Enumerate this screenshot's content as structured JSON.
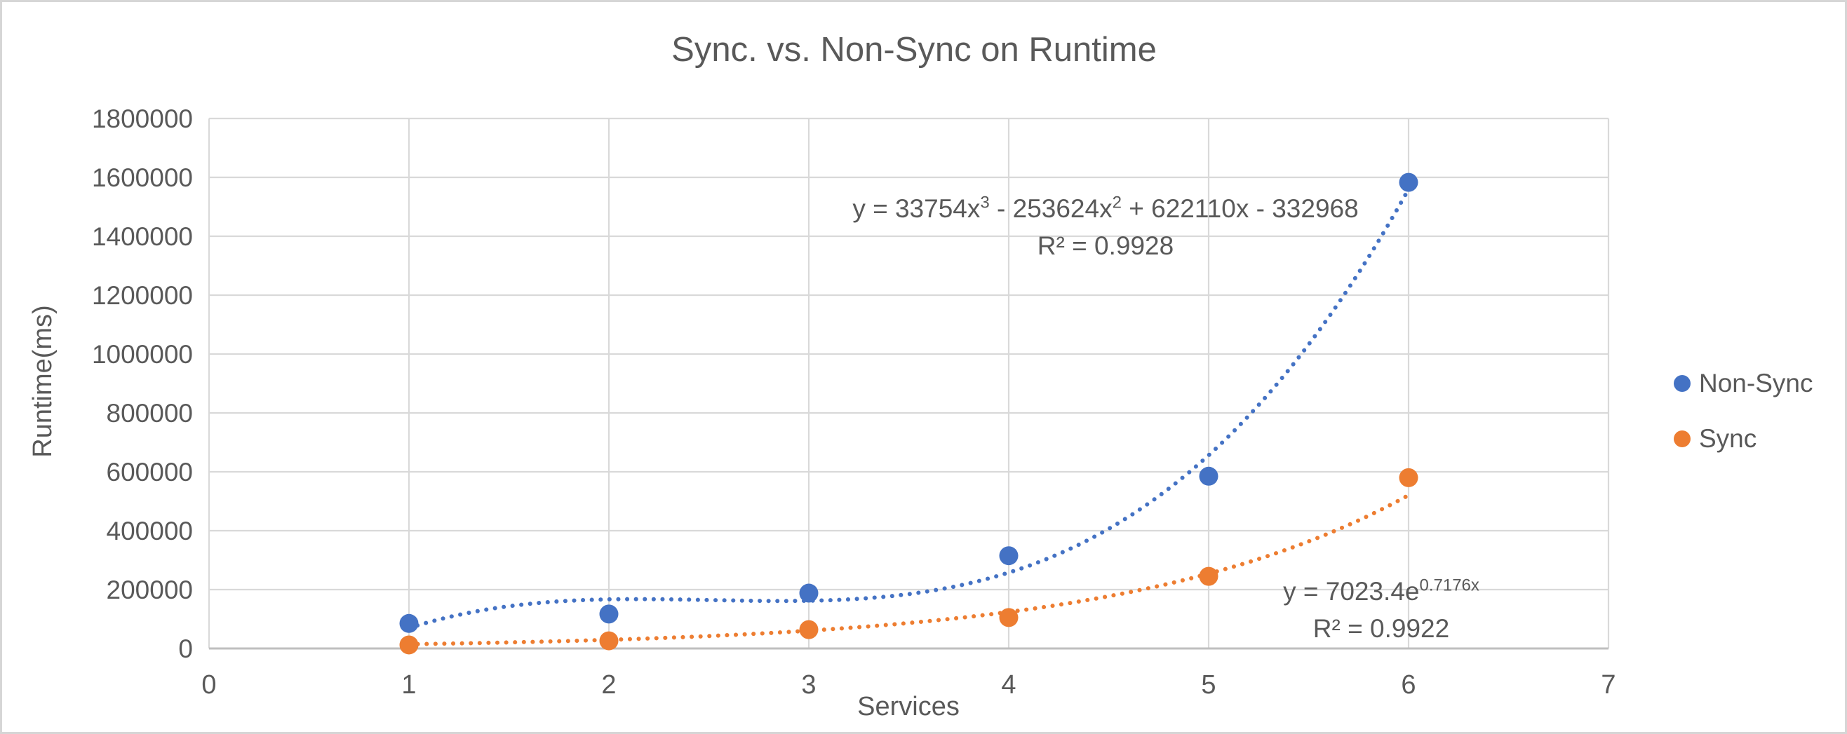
{
  "page": {
    "background": "#FFFFFF",
    "border_color": "#D6D6D6"
  },
  "chart_data": {
    "type": "scatter",
    "title": "Sync. vs. Non-Sync on Runtime",
    "xlabel": "Services",
    "ylabel": "Runtime(ms)",
    "xlim": [
      0,
      7
    ],
    "ylim": [
      0,
      1800000
    ],
    "x_ticks": [
      0,
      1,
      2,
      3,
      4,
      5,
      6,
      7
    ],
    "y_ticks": [
      0,
      200000,
      400000,
      600000,
      800000,
      1000000,
      1200000,
      1400000,
      1600000,
      1800000
    ],
    "y_tick_labels": [
      "0",
      "200000",
      "400000",
      "600000",
      "800000",
      "1000000",
      "1200000",
      "1400000",
      "1600000",
      "1800000"
    ],
    "grid": true,
    "legend_position": "right-middle",
    "text_color": "#595959",
    "gridline_color": "#D9D9D9",
    "axis_line_color": "#BFBFBF",
    "series": [
      {
        "name": "Non-Sync",
        "color": "#4472C4",
        "x": [
          1,
          2,
          3,
          4,
          5,
          6
        ],
        "y": [
          85000,
          117000,
          188000,
          315000,
          585000,
          1583000
        ],
        "trendline": {
          "type": "polynomial",
          "order": 3,
          "coefficients": [
            33754,
            -253624,
            622110,
            -332968
          ],
          "style": "dotted",
          "x_range": [
            1,
            6
          ],
          "equation_parts": {
            "p1": "y = 33754x",
            "sup1": "3",
            "p2": " - 253624x",
            "sup2": "2",
            "p3": " + 622110x - 332968"
          },
          "r_squared": "R² = 0.9928"
        }
      },
      {
        "name": "Sync",
        "color": "#ED7D31",
        "x": [
          1,
          2,
          3,
          4,
          5,
          6
        ],
        "y": [
          12000,
          26000,
          64000,
          105000,
          245000,
          580000
        ],
        "trendline": {
          "type": "exponential",
          "base": 7023.4,
          "exponent_coefficient": 0.7176,
          "style": "dotted",
          "x_range": [
            1,
            6
          ],
          "equation_parts": {
            "p1": "y = 7023.4e",
            "sup1": "0.7176x"
          },
          "r_squared": "R² = 0.9922"
        }
      }
    ]
  }
}
